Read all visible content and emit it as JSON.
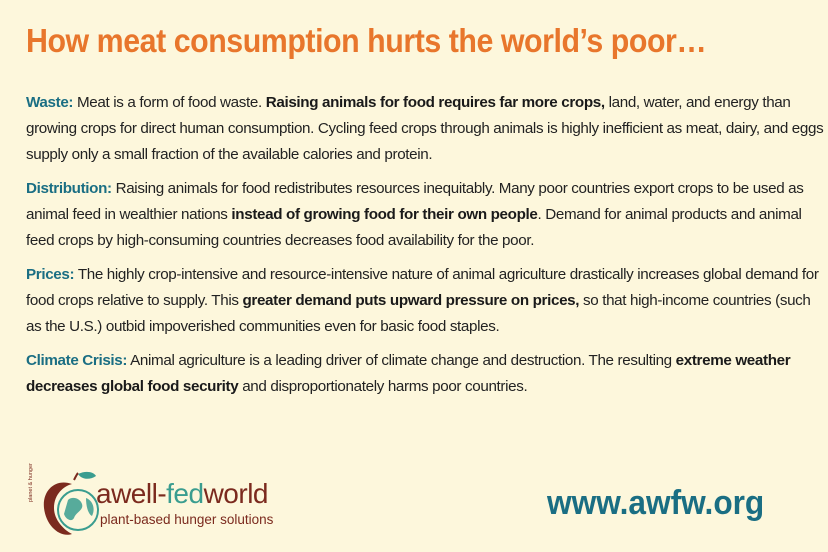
{
  "title": "How meat consumption hurts the world’s poor…",
  "sections": [
    {
      "heading": "Waste:",
      "t1": " Meat is a form of food waste. ",
      "bold": "Raising animals for food requires far more crops,",
      "t2": " land, water, and energy than growing crops for direct human consumption. Cycling feed crops through animals is highly inefficient as meat, dairy, and eggs supply only a small fraction of the available calories and protein."
    },
    {
      "heading": "Distribution:",
      "t1": " Raising animals for food redistributes resources inequitably. Many poor countries export crops to be used as animal feed in wealthier nations ",
      "bold": "instead of growing food for their own people",
      "t2": ". Demand for animal products and animal feed crops by high-consuming countries decreases food availability for the poor."
    },
    {
      "heading": "Prices:",
      "t1": " The highly crop-intensive and resource-intensive nature of animal agriculture drastically increases global demand for food crops relative to supply. This ",
      "bold": "greater demand puts upward pressure on prices,",
      "t2": " so that high-income countries (such as the U.S.) outbid impoverished communities even for basic food staples."
    },
    {
      "heading": "Climate Crisis:",
      "t1": " Animal agriculture is a leading driver of climate change and destruction. The resulting ",
      "bold": "extreme weather decreases global food security",
      "t2": " and disproportionately harms poor countries."
    }
  ],
  "logo": {
    "prefix": "a",
    "well": "well-",
    "fed": "fed",
    "world": "world",
    "tagline": "plant-based hunger solutions",
    "vertical": "planet & hunger"
  },
  "url": "www.awfw.org",
  "colors": {
    "background": "#fdf7dc",
    "title": "#e8762c",
    "heading": "#1a6e83",
    "logo_brown": "#7b2a1e",
    "logo_teal": "#3a9d8f"
  }
}
